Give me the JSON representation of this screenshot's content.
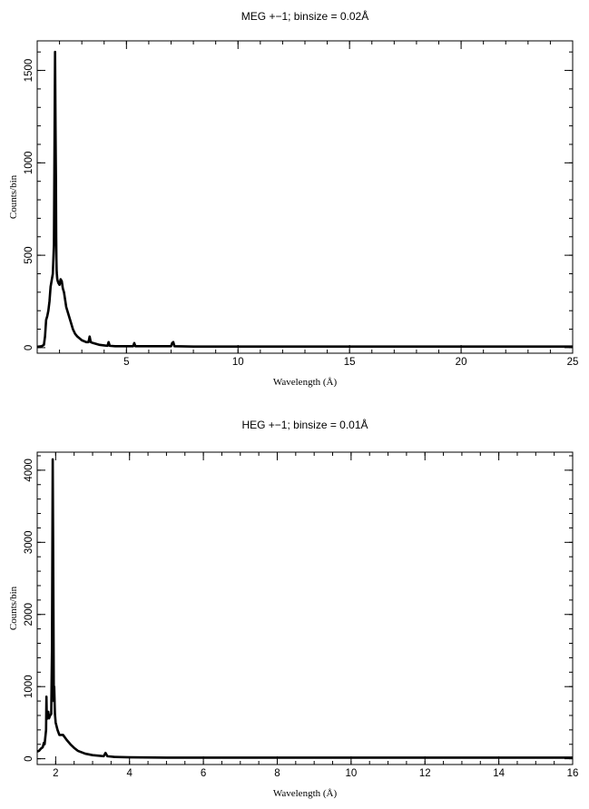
{
  "chart_data": [
    {
      "type": "line",
      "title": "MEG +−1; binsize = 0.02Å",
      "xlabel": "Wavelength (Å)",
      "ylabel": "Counts/bin",
      "xlim": [
        1.0,
        25.0
      ],
      "ylim": [
        -30,
        1660
      ],
      "xticks": [
        5,
        10,
        15,
        20,
        25
      ],
      "yticks": [
        0,
        500,
        1000,
        1500
      ],
      "grid": false,
      "series": [
        {
          "x": [
            1.0,
            1.2,
            1.3,
            1.35,
            1.4,
            1.45,
            1.5,
            1.55,
            1.6,
            1.7,
            1.75,
            1.8,
            1.82,
            1.84,
            1.85,
            1.86,
            1.87,
            1.88,
            1.9,
            1.92,
            1.95,
            2.0,
            2.05,
            2.1,
            2.15,
            2.2,
            2.25,
            2.3,
            2.4,
            2.5,
            2.6,
            2.7,
            2.8,
            3.0,
            3.2,
            3.3,
            3.35,
            3.4,
            3.5,
            3.8,
            4.0,
            4.15,
            4.2,
            4.25,
            4.5,
            5.0,
            5.3,
            5.35,
            5.4,
            6.0,
            7.0,
            7.05,
            7.1,
            7.15,
            8.0,
            10.0,
            15.0,
            20.0,
            25.0
          ],
          "y": [
            5,
            8,
            15,
            60,
            150,
            170,
            200,
            250,
            330,
            400,
            560,
            1600,
            1200,
            900,
            600,
            480,
            420,
            400,
            370,
            360,
            350,
            340,
            370,
            360,
            320,
            300,
            260,
            220,
            180,
            140,
            100,
            75,
            60,
            40,
            30,
            30,
            60,
            30,
            25,
            15,
            12,
            10,
            30,
            10,
            8,
            8,
            8,
            25,
            8,
            8,
            8,
            25,
            30,
            8,
            6,
            6,
            6,
            6,
            6
          ]
        }
      ]
    },
    {
      "type": "line",
      "title": "HEG +−1; binsize = 0.01Å",
      "xlabel": "Wavelength (Å)",
      "ylabel": "Counts/bin",
      "xlim": [
        1.5,
        16.0
      ],
      "ylim": [
        -80,
        4250
      ],
      "xticks": [
        2,
        4,
        6,
        8,
        10,
        12,
        14,
        16
      ],
      "yticks": [
        0,
        1000,
        2000,
        3000,
        4000
      ],
      "grid": false,
      "series": [
        {
          "x": [
            1.5,
            1.55,
            1.6,
            1.65,
            1.68,
            1.7,
            1.72,
            1.74,
            1.75,
            1.76,
            1.78,
            1.8,
            1.82,
            1.85,
            1.88,
            1.9,
            1.92,
            1.94,
            1.95,
            1.96,
            1.98,
            2.0,
            2.05,
            2.1,
            2.2,
            2.3,
            2.4,
            2.5,
            2.6,
            2.8,
            3.0,
            3.2,
            3.3,
            3.35,
            3.4,
            3.6,
            4.0,
            5.0,
            8.0,
            12.0,
            16.0
          ],
          "y": [
            100,
            110,
            140,
            160,
            220,
            200,
            300,
            400,
            860,
            550,
            620,
            650,
            560,
            600,
            620,
            1500,
            4150,
            2000,
            800,
            1000,
            620,
            500,
            400,
            330,
            330,
            260,
            200,
            150,
            110,
            70,
            50,
            40,
            35,
            80,
            35,
            25,
            20,
            15,
            15,
            15,
            15
          ]
        }
      ]
    }
  ]
}
